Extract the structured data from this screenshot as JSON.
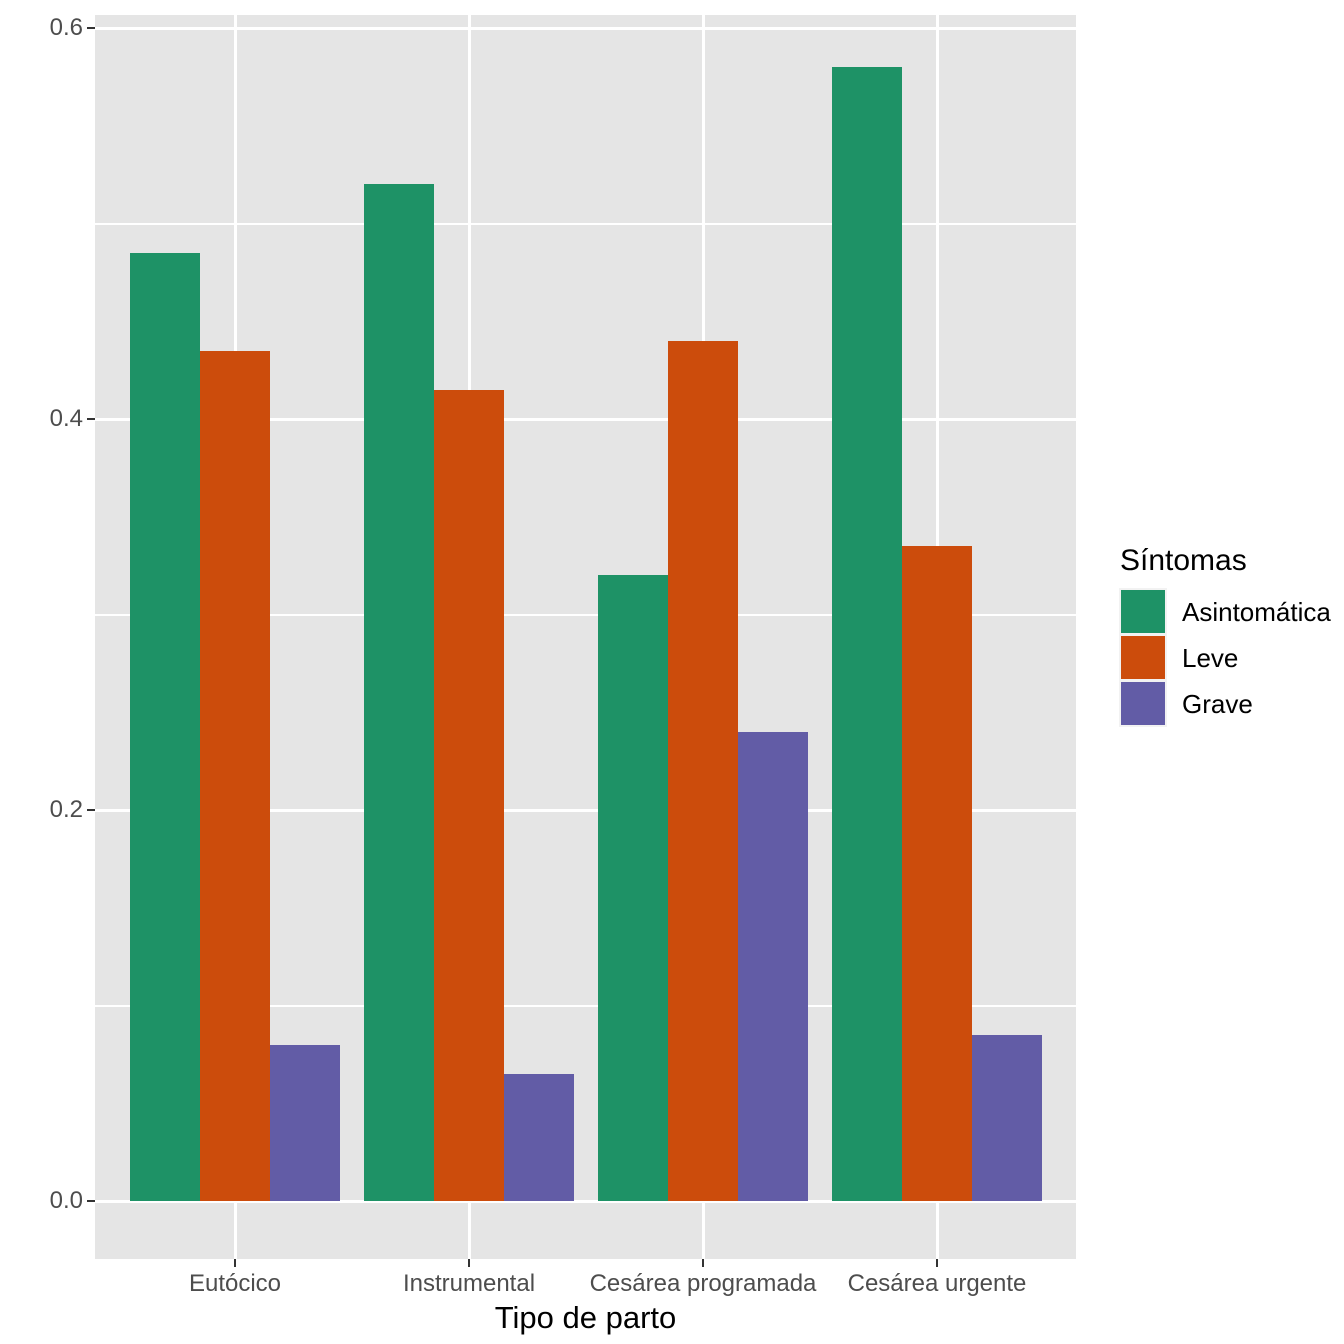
{
  "chart_data": {
    "type": "bar",
    "title": "",
    "xlabel": "Tipo de parto",
    "ylabel": "",
    "legend_title": "Síntomas",
    "legend_position": "right",
    "grid": true,
    "categories": [
      "Eutócico",
      "Instrumental",
      "Cesárea programada",
      "Cesárea urgente"
    ],
    "series": [
      {
        "name": "Asintomática",
        "color": "#1E9266",
        "values": [
          0.485,
          0.52,
          0.32,
          0.58
        ]
      },
      {
        "name": "Leve",
        "color": "#CC4C0C",
        "values": [
          0.435,
          0.415,
          0.44,
          0.335
        ]
      },
      {
        "name": "Grave",
        "color": "#625CA6",
        "values": [
          0.08,
          0.065,
          0.24,
          0.085
        ]
      }
    ],
    "ylim": [
      0,
      0.6
    ],
    "y_major_ticks": [
      0.0,
      0.2,
      0.4,
      0.6
    ],
    "y_tick_labels": [
      "0.0",
      "0.2",
      "0.4",
      "0.6"
    ],
    "y_minor_ticks": [
      0.1,
      0.3,
      0.5
    ],
    "colors": {
      "panel_background": "#E5E5E5",
      "grid": "#FFFFFF",
      "axis_text": "#4D4D4D",
      "tick_mark": "#333333",
      "title_text": "#000000",
      "legend_key_background": "#F2F2F2"
    }
  }
}
